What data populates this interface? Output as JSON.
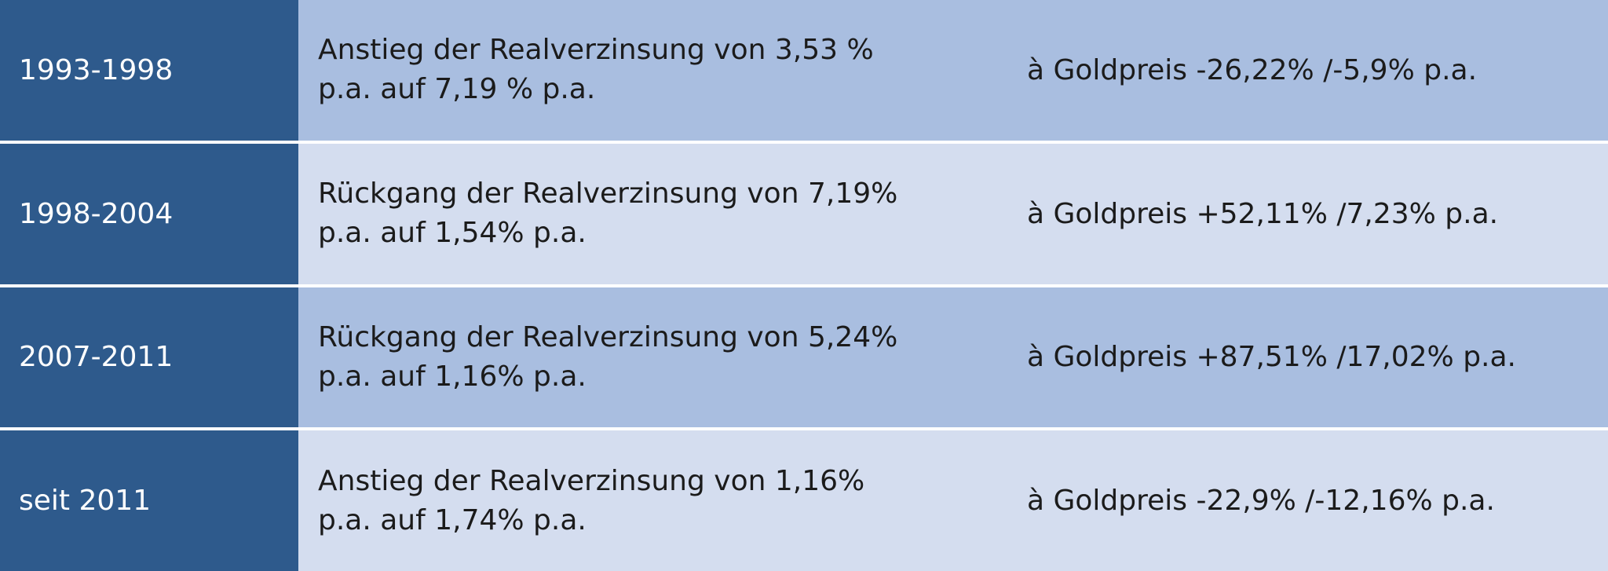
{
  "table": {
    "rows": [
      [
        "1993-1998",
        [
          "Anstieg der Realverzinsung von 3,53 %",
          "p.a. auf 7,19 % p.a."
        ],
        "à Goldpreis -26,22% /-5,9% p.a."
      ],
      [
        "1998-2004",
        [
          "Rückgang der Realverzinsung von 7,19%",
          "p.a. auf 1,54% p.a."
        ],
        "à Goldpreis +52,11% /7,23% p.a."
      ],
      [
        "2007-2011",
        [
          "Rückgang der Realverzinsung von 5,24%",
          "p.a. auf 1,16% p.a."
        ],
        "à Goldpreis +87,51% /17,02% p.a."
      ],
      [
        "seit 2011",
        [
          "Anstieg der Realverzinsung von 1,16%",
          "p.a. auf 1,74% p.a."
        ],
        "à Goldpreis -22,9% /-12,16% p.a."
      ]
    ]
  }
}
